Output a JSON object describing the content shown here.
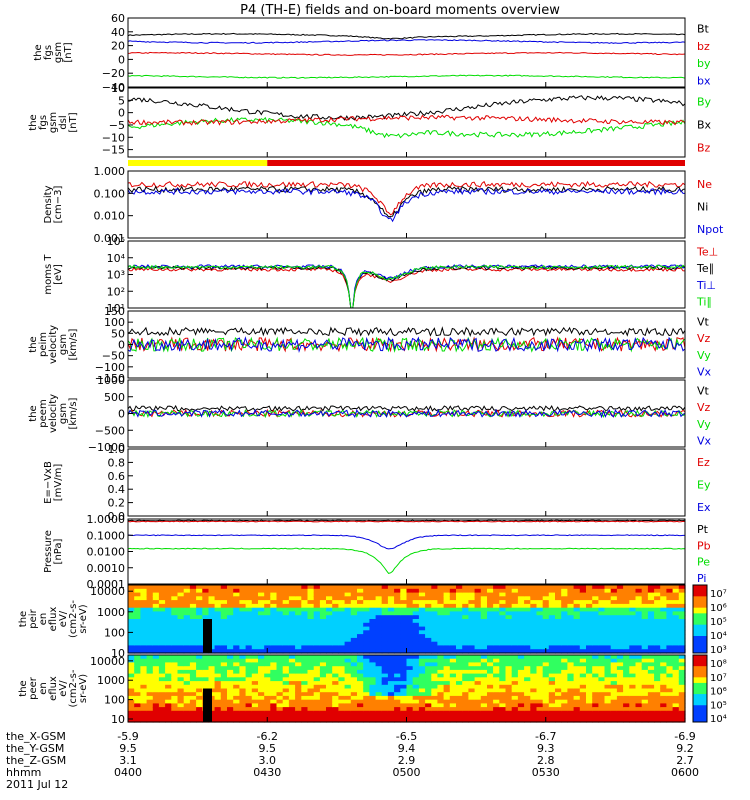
{
  "title": "P4 (TH-E) fields and on-board moments overview",
  "colors": {
    "black": "#000000",
    "red": "#e00000",
    "green": "#00dd00",
    "blue": "#0000e0",
    "yellow": "#ffff00"
  },
  "chart_data": [
    {
      "type": "line",
      "title": "fgs gsm",
      "ylabel": "the fgs gsm [nT]",
      "ylim": [
        -40,
        60
      ],
      "yticks": [
        "60",
        "40",
        "20",
        "0",
        "−20",
        "−40"
      ],
      "ytick_values": [
        60,
        40,
        20,
        0,
        -20,
        -40
      ],
      "series": [
        {
          "name": "Bt",
          "color": "black",
          "base": 35,
          "var": 2
        },
        {
          "name": "bz",
          "color": "red",
          "base": 8,
          "var": 1.5
        },
        {
          "name": "by",
          "color": "green",
          "base": -25,
          "var": 1.5
        },
        {
          "name": "bx",
          "color": "blue",
          "base": 26,
          "var": 2
        }
      ]
    },
    {
      "type": "line",
      "title": "fgs gsm dsl",
      "ylabel": "the fgs gsm dsl [nT]",
      "ylim": [
        -18,
        10
      ],
      "yticks": [
        "10",
        "5",
        "0",
        "−5",
        "−10",
        "−15"
      ],
      "ytick_values": [
        10,
        5,
        0,
        -5,
        -10,
        -15
      ],
      "series": [
        {
          "name": "By",
          "color": "green",
          "base": -6,
          "var": 3
        },
        {
          "name": "Bx",
          "color": "black",
          "base": 2,
          "var": 4
        },
        {
          "name": "Bz",
          "color": "red",
          "base": -3,
          "var": 1
        }
      ]
    },
    {
      "type": "bar",
      "title": "mode bar",
      "segments": [
        {
          "color": "yellow",
          "x": [
            4.0,
            4.5
          ]
        },
        {
          "color": "red",
          "x": [
            4.5,
            6.0
          ]
        }
      ]
    },
    {
      "type": "line",
      "title": "density",
      "ylabel": "Density [cm−3]",
      "yscale": "log",
      "ylim": [
        0.001,
        1
      ],
      "yticks": [
        "1.000",
        "0.100",
        "0.010",
        "0.001"
      ],
      "ytick_values": [
        1,
        0.1,
        0.01,
        0.001
      ],
      "series": [
        {
          "name": "Ne",
          "color": "red",
          "base": 0.25
        },
        {
          "name": "Ni",
          "color": "black",
          "base": 0.15
        },
        {
          "name": "Npot",
          "color": "blue",
          "base": 0.12
        }
      ]
    },
    {
      "type": "line",
      "title": "temperature",
      "ylabel": "moms T [eV]",
      "yscale": "log",
      "ylim": [
        10,
        100000
      ],
      "yticks": [
        "10⁵",
        "10⁴",
        "10³",
        "10²",
        "10¹"
      ],
      "ytick_values": [
        100000,
        10000,
        1000,
        100,
        10
      ],
      "series": [
        {
          "name": "Te⊥",
          "color": "red",
          "base": 2000
        },
        {
          "name": "Te∥",
          "color": "black",
          "base": 2500
        },
        {
          "name": "Ti⊥",
          "color": "blue",
          "base": 3000
        },
        {
          "name": "Ti∥",
          "color": "green",
          "base": 2800
        }
      ]
    },
    {
      "type": "line",
      "title": "peim velocity",
      "ylabel": "the peim velocity gsm [km/s]",
      "ylim": [
        -150,
        150
      ],
      "yticks": [
        "150",
        "100",
        "50",
        "0",
        "−50",
        "−100",
        "−150"
      ],
      "ytick_values": [
        150,
        100,
        50,
        0,
        -50,
        -100,
        -150
      ],
      "series": [
        {
          "name": "Vt",
          "color": "black"
        },
        {
          "name": "Vz",
          "color": "red"
        },
        {
          "name": "Vy",
          "color": "green"
        },
        {
          "name": "Vx",
          "color": "blue"
        }
      ]
    },
    {
      "type": "line",
      "title": "peem velocity",
      "ylabel": "the peem velocity gsm [km/s]",
      "ylim": [
        -1000,
        1000
      ],
      "yticks": [
        "1000",
        "500",
        "0",
        "−500",
        "−1000"
      ],
      "ytick_values": [
        1000,
        500,
        0,
        -500,
        -1000
      ],
      "series": [
        {
          "name": "Vt",
          "color": "black"
        },
        {
          "name": "Vz",
          "color": "red"
        },
        {
          "name": "Vy",
          "color": "green"
        },
        {
          "name": "Vx",
          "color": "blue"
        }
      ]
    },
    {
      "type": "line",
      "title": "E field",
      "ylabel": "E=−VxB [mV/m]",
      "ylim": [
        0,
        1
      ],
      "yticks": [
        "1.0",
        "0.8",
        "0.6",
        "0.4",
        "0.2",
        "0.0"
      ],
      "ytick_values": [
        1,
        0.8,
        0.6,
        0.4,
        0.2,
        0
      ],
      "series": [
        {
          "name": "Ez",
          "color": "red"
        },
        {
          "name": "Ey",
          "color": "green"
        },
        {
          "name": "Ex",
          "color": "blue"
        }
      ]
    },
    {
      "type": "line",
      "title": "pressure",
      "ylabel": "Pressure [nPa]",
      "yscale": "log",
      "ylim": [
        0.0001,
        1
      ],
      "yticks": [
        "1.0000",
        "0.1000",
        "0.0100",
        "0.0010",
        "0.0001"
      ],
      "ytick_values": [
        1,
        0.1,
        0.01,
        0.001,
        0.0001
      ],
      "series": [
        {
          "name": "Pt",
          "color": "black",
          "base": 0.8
        },
        {
          "name": "Pb",
          "color": "red",
          "base": 0.7
        },
        {
          "name": "Pe",
          "color": "green",
          "base": 0.015
        },
        {
          "name": "Pi",
          "color": "blue",
          "base": 0.1
        }
      ]
    },
    {
      "type": "heatmap",
      "title": "peir en eflux",
      "ylabel": "the peir en eflux eV/(cm2-s-sr-eV)",
      "yscale": "log",
      "ylim": [
        10,
        20000
      ],
      "yticks": [
        "10000",
        "1000",
        "100",
        "10"
      ],
      "ytick_values": [
        10000,
        1000,
        100,
        10
      ],
      "colorbar": {
        "ticks": [
          "10⁷",
          "10⁶",
          "10⁵",
          "10⁴",
          "10³"
        ]
      }
    },
    {
      "type": "heatmap",
      "title": "peer en eflux",
      "ylabel": "the peer en eflux eV/(cm2-s-sr-eV)",
      "yscale": "log",
      "ylim": [
        7,
        20000
      ],
      "yticks": [
        "10000",
        "1000",
        "100",
        "10"
      ],
      "ytick_values": [
        10000,
        1000,
        100,
        10
      ],
      "colorbar": {
        "ticks": [
          "10⁸",
          "10⁷",
          "10⁶",
          "10⁵",
          "10⁴"
        ]
      }
    }
  ],
  "legends": [
    [
      "Bt",
      "bz",
      "by",
      "bx"
    ],
    [
      "By",
      "Bx",
      "Bz"
    ],
    [],
    [
      "Ne",
      "Ni",
      "Npot"
    ],
    [
      "Te⊥",
      "Te∥",
      "Ti⊥",
      "Ti∥"
    ],
    [
      "Vt",
      "Vz",
      "Vy",
      "Vx"
    ],
    [
      "Vt",
      "Vz",
      "Vy",
      "Vx"
    ],
    [
      "Ez",
      "Ey",
      "Ex"
    ],
    [
      "Pt",
      "Pb",
      "Pe",
      "Pi"
    ],
    [],
    []
  ],
  "ylabels": [
    [
      "the",
      "fgs",
      "gsm",
      "[nT]"
    ],
    [
      "the",
      "fgs",
      "gsm",
      "dsl",
      "[nT]"
    ],
    [],
    [
      "Density",
      "[cm−3]"
    ],
    [
      "moms T",
      "[eV]"
    ],
    [
      "the",
      "peim",
      "velocity",
      "gsm",
      "[km/s]"
    ],
    [
      "the",
      "peem",
      "velocity",
      "gsm",
      "[km/s]"
    ],
    [
      "E=−VxB",
      "[mV/m]"
    ],
    [
      "Pressure",
      "[nPa]"
    ],
    [
      "the",
      "peir",
      "en",
      "eflux",
      "eV/",
      "(cm2-s-",
      "sr-eV)"
    ],
    [
      "the",
      "peer",
      "en",
      "eflux",
      "eV/",
      "(cm2-s-",
      "sr-eV)"
    ]
  ],
  "xaxis": {
    "labels": [
      "the_X-GSM",
      "the_Y-GSM",
      "the_Z-GSM",
      "hhmm"
    ],
    "date": "2011 Jul 12",
    "ticks": [
      {
        "x": "-5.9",
        "y": "9.5",
        "z": "3.1",
        "t": "0400"
      },
      {
        "x": "-6.2",
        "y": "9.5",
        "z": "3.0",
        "t": "0430"
      },
      {
        "x": "-6.5",
        "y": "9.4",
        "z": "2.9",
        "t": "0500"
      },
      {
        "x": "-6.7",
        "y": "9.3",
        "z": "2.8",
        "t": "0530"
      },
      {
        "x": "-6.9",
        "y": "9.2",
        "z": "2.7",
        "t": "0600"
      }
    ]
  }
}
